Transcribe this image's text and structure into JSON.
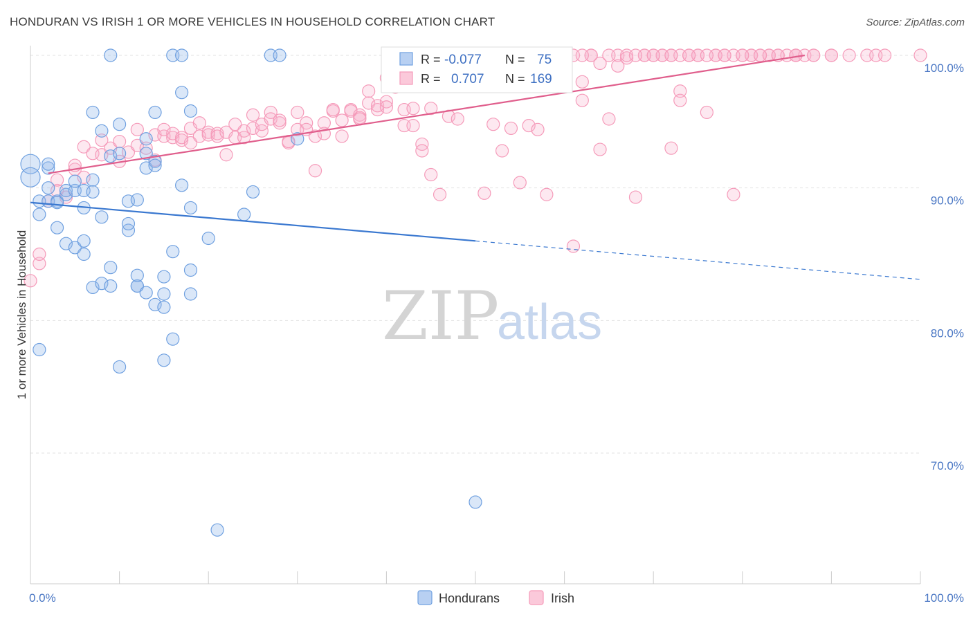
{
  "title": "HONDURAN VS IRISH 1 OR MORE VEHICLES IN HOUSEHOLD CORRELATION CHART",
  "source": "Source: ZipAtlas.com",
  "watermark": {
    "zip": "ZIP",
    "atlas": "atlas"
  },
  "chart_data": {
    "type": "scatter",
    "ylabel": "1 or more Vehicles in Household",
    "xlabel": "",
    "xlim": [
      0,
      100
    ],
    "ylim": [
      62,
      102
    ],
    "x_tick_labels": [
      "0.0%",
      "100.0%"
    ],
    "y_ticks": [
      70,
      80,
      90,
      100
    ],
    "y_tick_labels": [
      "70.0%",
      "80.0%",
      "90.0%",
      "100.0%"
    ],
    "grid": true,
    "legend_position": "top-center",
    "legend": {
      "r_label": "R =",
      "n_label": "N =",
      "entries": [
        {
          "r": "-0.077",
          "n": "75"
        },
        {
          "r": "0.707",
          "n": "169"
        }
      ]
    },
    "series": [
      {
        "name": "Hondurans",
        "color": "#6fa0e0",
        "line_color": "#3a78d0",
        "trend": {
          "x": [
            0,
            50,
            100
          ],
          "y": [
            88.9,
            86.0,
            83.1
          ],
          "solid_to": 50
        },
        "points": [
          [
            0,
            91.8
          ],
          [
            0,
            90.8
          ],
          [
            1,
            77.8
          ],
          [
            1,
            89
          ],
          [
            1,
            88
          ],
          [
            2,
            91.5
          ],
          [
            2,
            91.8
          ],
          [
            2,
            90
          ],
          [
            2,
            89
          ],
          [
            3,
            89
          ],
          [
            3,
            88.9
          ],
          [
            3,
            87
          ],
          [
            4,
            89.5
          ],
          [
            4,
            89.8
          ],
          [
            4,
            85.8
          ],
          [
            5,
            85.5
          ],
          [
            5,
            89.8
          ],
          [
            5,
            90.5
          ],
          [
            6,
            86
          ],
          [
            6,
            85
          ],
          [
            6,
            89.8
          ],
          [
            6,
            88.5
          ],
          [
            7,
            90.6
          ],
          [
            7,
            95.7
          ],
          [
            7,
            89.7
          ],
          [
            7,
            82.5
          ],
          [
            8,
            82.8
          ],
          [
            8,
            94.3
          ],
          [
            8,
            87.8
          ],
          [
            9,
            82.6
          ],
          [
            9,
            92.4
          ],
          [
            9,
            84
          ],
          [
            9,
            100
          ],
          [
            10,
            94.8
          ],
          [
            10,
            76.5
          ],
          [
            10,
            92.6
          ],
          [
            11,
            86.8
          ],
          [
            11,
            87.3
          ],
          [
            11,
            89
          ],
          [
            12,
            89.1
          ],
          [
            12,
            82.6
          ],
          [
            12,
            82.6
          ],
          [
            12,
            83.4
          ],
          [
            13,
            92.6
          ],
          [
            13,
            93.7
          ],
          [
            13,
            82.1
          ],
          [
            13,
            91.5
          ],
          [
            14,
            95.7
          ],
          [
            14,
            92
          ],
          [
            14,
            81.2
          ],
          [
            14,
            91.7
          ],
          [
            15,
            83.3
          ],
          [
            15,
            82
          ],
          [
            15,
            81
          ],
          [
            15,
            77
          ],
          [
            16,
            78.6
          ],
          [
            16,
            85.2
          ],
          [
            16,
            100
          ],
          [
            17,
            97.2
          ],
          [
            17,
            90.2
          ],
          [
            17,
            100
          ],
          [
            18,
            95.8
          ],
          [
            18,
            83.8
          ],
          [
            18,
            82
          ],
          [
            18,
            88.5
          ],
          [
            20,
            86.2
          ],
          [
            21,
            64.2
          ],
          [
            24,
            88
          ],
          [
            25,
            89.7
          ],
          [
            27,
            100
          ],
          [
            28,
            100
          ],
          [
            30,
            93.7
          ],
          [
            50,
            66.3
          ]
        ]
      },
      {
        "name": "Irish",
        "color": "#f59ab9",
        "line_color": "#e05e8c",
        "trend": {
          "x": [
            2,
            87
          ],
          "y": [
            91.1,
            100
          ]
        },
        "points": [
          [
            0,
            83
          ],
          [
            1,
            84.3
          ],
          [
            1,
            85
          ],
          [
            2,
            89
          ],
          [
            3,
            89.8
          ],
          [
            3,
            90.6
          ],
          [
            4,
            89.3
          ],
          [
            5,
            91.4
          ],
          [
            5,
            91.7
          ],
          [
            6,
            90.8
          ],
          [
            6,
            93.1
          ],
          [
            7,
            92.6
          ],
          [
            8,
            92.5
          ],
          [
            8,
            93.6
          ],
          [
            9,
            93
          ],
          [
            10,
            93.5
          ],
          [
            10,
            92
          ],
          [
            11,
            92.7
          ],
          [
            12,
            93.2
          ],
          [
            12,
            94.4
          ],
          [
            13,
            93
          ],
          [
            14,
            94
          ],
          [
            14,
            92.1
          ],
          [
            15,
            93.9
          ],
          [
            15,
            94.4
          ],
          [
            16,
            93.8
          ],
          [
            16,
            94.1
          ],
          [
            17,
            93.6
          ],
          [
            17,
            93.8
          ],
          [
            18,
            94.5
          ],
          [
            18,
            93.4
          ],
          [
            19,
            94.9
          ],
          [
            19,
            93.9
          ],
          [
            20,
            94.2
          ],
          [
            20,
            94
          ],
          [
            21,
            94.1
          ],
          [
            21,
            93.9
          ],
          [
            22,
            94.2
          ],
          [
            22,
            92.5
          ],
          [
            23,
            93.8
          ],
          [
            23,
            94.8
          ],
          [
            24,
            93.8
          ],
          [
            24,
            94.3
          ],
          [
            25,
            95.5
          ],
          [
            25,
            94.5
          ],
          [
            26,
            94.3
          ],
          [
            26,
            94.8
          ],
          [
            27,
            95.7
          ],
          [
            27,
            95.2
          ],
          [
            28,
            94.9
          ],
          [
            28,
            95.1
          ],
          [
            29,
            93.4
          ],
          [
            29,
            93.5
          ],
          [
            30,
            94.4
          ],
          [
            30,
            95.7
          ],
          [
            31,
            94.9
          ],
          [
            31,
            94.4
          ],
          [
            32,
            91.3
          ],
          [
            32,
            93.9
          ],
          [
            33,
            94.9
          ],
          [
            33,
            94.1
          ],
          [
            34,
            95.8
          ],
          [
            34,
            95.9
          ],
          [
            35,
            95.1
          ],
          [
            35,
            93.9
          ],
          [
            36,
            95.9
          ],
          [
            36,
            95.8
          ],
          [
            37,
            95.5
          ],
          [
            37,
            95.3
          ],
          [
            37,
            95.2
          ],
          [
            38,
            96.4
          ],
          [
            38,
            97.3
          ],
          [
            39,
            95.9
          ],
          [
            39,
            96.2
          ],
          [
            40,
            96.5
          ],
          [
            40,
            96.1
          ],
          [
            40,
            98.3
          ],
          [
            41,
            97.6
          ],
          [
            41,
            98
          ],
          [
            42,
            94.7
          ],
          [
            42,
            95.9
          ],
          [
            43,
            96
          ],
          [
            43,
            94.7
          ],
          [
            44,
            93.3
          ],
          [
            44,
            92.8
          ],
          [
            45,
            96
          ],
          [
            45,
            91
          ],
          [
            46,
            89.5
          ],
          [
            47,
            95.4
          ],
          [
            48,
            95.2
          ],
          [
            49,
            98.3
          ],
          [
            49,
            98.9
          ],
          [
            50,
            100
          ],
          [
            51,
            89.6
          ],
          [
            52,
            94.8
          ],
          [
            53,
            92.8
          ],
          [
            54,
            94.5
          ],
          [
            55,
            90.4
          ],
          [
            56,
            94.7
          ],
          [
            57,
            94.4
          ],
          [
            58,
            89.5
          ],
          [
            59,
            98.6
          ],
          [
            60,
            100
          ],
          [
            61,
            85.6
          ],
          [
            61,
            100
          ],
          [
            62,
            96.6
          ],
          [
            63,
            100
          ],
          [
            64,
            92.9
          ],
          [
            65,
            95.2
          ],
          [
            66,
            100
          ],
          [
            67,
            99.8
          ],
          [
            68,
            89.3
          ],
          [
            69,
            100
          ],
          [
            70,
            100
          ],
          [
            71,
            100
          ],
          [
            72,
            93
          ],
          [
            72,
            100
          ],
          [
            73,
            97.3
          ],
          [
            73,
            96.6
          ],
          [
            74,
            100
          ],
          [
            75,
            100
          ],
          [
            76,
            95.7
          ],
          [
            77,
            100
          ],
          [
            78,
            100
          ],
          [
            79,
            89.5
          ],
          [
            80,
            100
          ],
          [
            81,
            100
          ],
          [
            82,
            100
          ],
          [
            83,
            100
          ],
          [
            84,
            100
          ],
          [
            85,
            100
          ],
          [
            86,
            100
          ],
          [
            87,
            100
          ],
          [
            88,
            100
          ],
          [
            90,
            100
          ],
          [
            92,
            100
          ],
          [
            94,
            100
          ],
          [
            96,
            100
          ],
          [
            100,
            100
          ],
          [
            46,
            99.5
          ],
          [
            48,
            100
          ],
          [
            52,
            100
          ],
          [
            55,
            100
          ],
          [
            57,
            100
          ],
          [
            63,
            100
          ],
          [
            65,
            100
          ],
          [
            67,
            100
          ],
          [
            69,
            100
          ],
          [
            71,
            100
          ],
          [
            73,
            100
          ],
          [
            75,
            100
          ],
          [
            77,
            100
          ],
          [
            79,
            100
          ],
          [
            81,
            100
          ],
          [
            83,
            100
          ],
          [
            86,
            100
          ],
          [
            88,
            100
          ],
          [
            90,
            100
          ],
          [
            95,
            100
          ],
          [
            58,
            98.7
          ],
          [
            60,
            99
          ],
          [
            62,
            98
          ],
          [
            64,
            99.4
          ],
          [
            66,
            99.2
          ],
          [
            68,
            100
          ],
          [
            70,
            100
          ],
          [
            72,
            100
          ],
          [
            74,
            100
          ],
          [
            76,
            100
          ],
          [
            78,
            100
          ],
          [
            80,
            100
          ],
          [
            82,
            100
          ],
          [
            84,
            100
          ],
          [
            86,
            100
          ],
          [
            52,
            99.6
          ],
          [
            54,
            100
          ],
          [
            56,
            100
          ],
          [
            58,
            100
          ],
          [
            60,
            100
          ],
          [
            62,
            100
          ]
        ]
      }
    ]
  }
}
